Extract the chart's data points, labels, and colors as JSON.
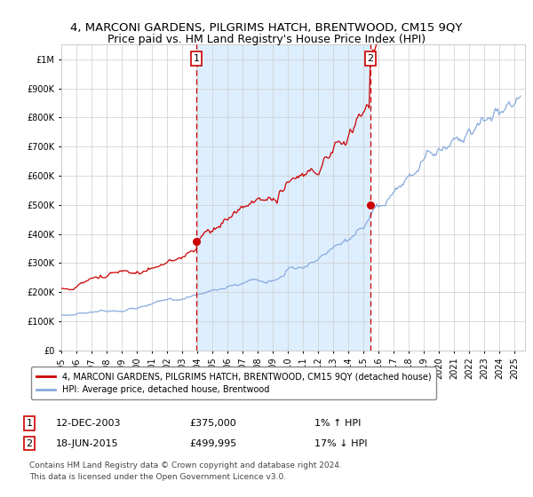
{
  "title": "4, MARCONI GARDENS, PILGRIMS HATCH, BRENTWOOD, CM15 9QY",
  "subtitle": "Price paid vs. HM Land Registry's House Price Index (HPI)",
  "ylim": [
    0,
    1050000
  ],
  "xlim_start": 1995.0,
  "xlim_end": 2025.7,
  "yticks": [
    0,
    100000,
    200000,
    300000,
    400000,
    500000,
    600000,
    700000,
    800000,
    900000,
    1000000
  ],
  "ytick_labels": [
    "£0",
    "£100K",
    "£200K",
    "£300K",
    "£400K",
    "£500K",
    "£600K",
    "£700K",
    "£800K",
    "£900K",
    "£1M"
  ],
  "sale1_date": 2003.95,
  "sale1_price": 375000,
  "sale2_date": 2015.46,
  "sale2_price": 499995,
  "shade_color": "#ddeeff",
  "hpi_color": "#88aadd",
  "price_color": "#cc0000",
  "marker_color": "#cc0000",
  "vline_color": "#cc0000",
  "grid_color": "#cccccc",
  "background_color": "#ffffff",
  "legend_label_red": "4, MARCONI GARDENS, PILGRIMS HATCH, BRENTWOOD, CM15 9QY (detached house)",
  "legend_label_blue": "HPI: Average price, detached house, Brentwood",
  "footer": "Contains HM Land Registry data © Crown copyright and database right 2024.\nThis data is licensed under the Open Government Licence v3.0.",
  "title_fontsize": 9.5,
  "tick_fontsize": 7,
  "legend_fontsize": 7,
  "annotation_fontsize": 8,
  "footer_fontsize": 6.5
}
